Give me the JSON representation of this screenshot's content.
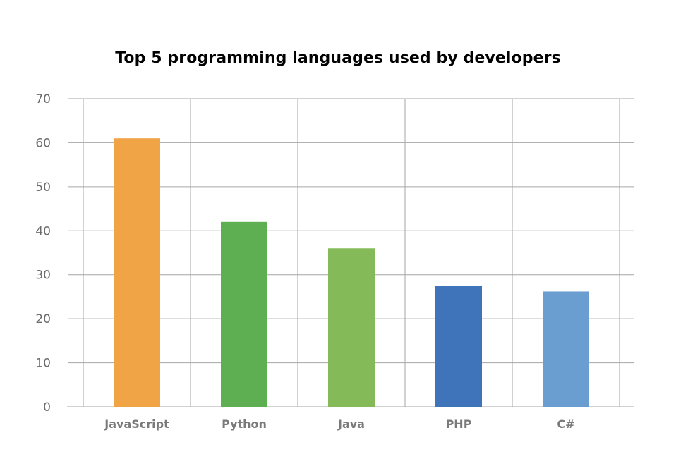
{
  "chart_data": {
    "type": "bar",
    "title": "Top 5 programming languages used by developers",
    "xlabel": "",
    "ylabel": "",
    "categories": [
      "JavaScript",
      "Python",
      "Java",
      "PHP",
      "C#"
    ],
    "values": [
      61,
      42,
      36,
      27.5,
      26.2
    ],
    "colors": [
      "#f0a446",
      "#5daf52",
      "#84ba58",
      "#3f74bb",
      "#6a9ed0"
    ],
    "ylim": [
      0,
      70
    ],
    "yticks": [
      "0",
      "10",
      "20",
      "30",
      "40",
      "50",
      "60",
      "70"
    ],
    "grid": {
      "horizontal": true,
      "vertical": true,
      "color": "#a6a6a6"
    },
    "legend": "none"
  }
}
